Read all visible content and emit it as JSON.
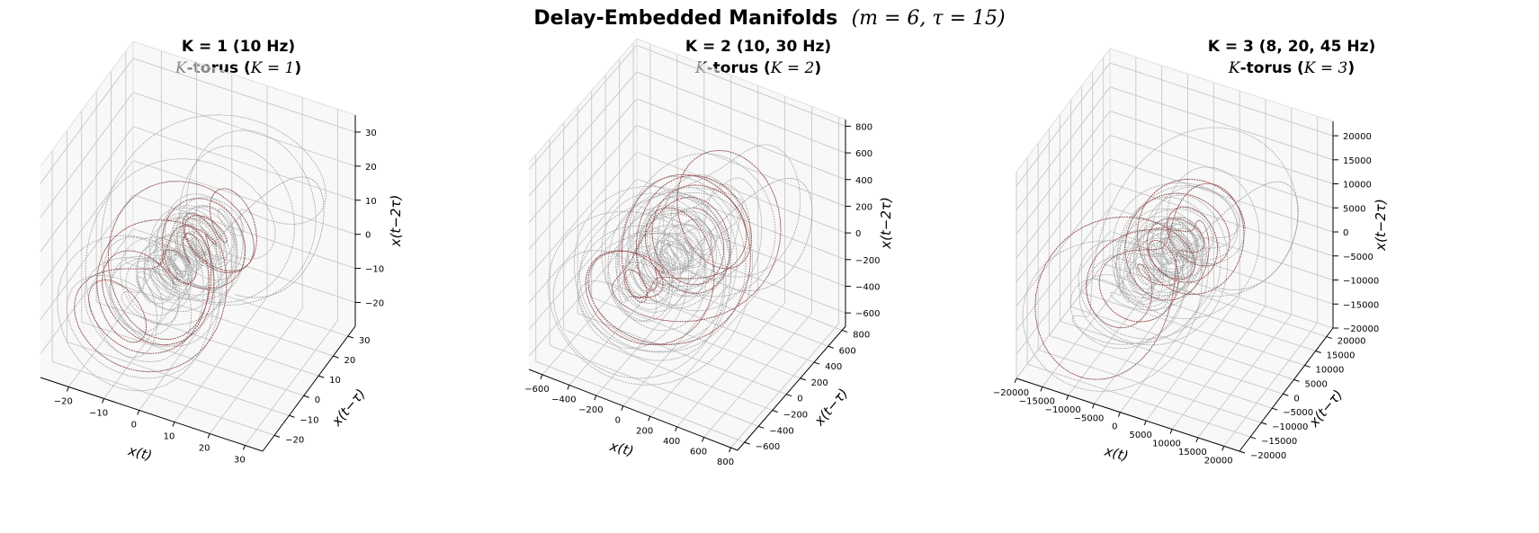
{
  "title": {
    "text": "Delay-Embedded Manifolds",
    "params": "(m = 6,  τ = 15)"
  },
  "chart_data": [
    {
      "type": "scatter",
      "projection": "3d",
      "title": "K = 1  (10 Hz)",
      "subtitle_prefix": "K",
      "subtitle_mid": "-torus (",
      "subtitle_math": "K = 1",
      "subtitle_suffix": ")",
      "xlabel": "x(t)",
      "ylabel": "x(t−τ)",
      "zlabel": "x(t−2τ)",
      "xticks": [
        -20,
        -10,
        0,
        10,
        20,
        30
      ],
      "yticks": [
        -20,
        -10,
        0,
        10,
        20,
        30
      ],
      "zticks": [
        -20,
        -10,
        0,
        10,
        20,
        30
      ],
      "xlim": [
        -28,
        35
      ],
      "ylim": [
        -28,
        35
      ],
      "zlim": [
        -27,
        35
      ],
      "grid": true,
      "trajectory": {
        "amplitude": 15,
        "extent": 33,
        "seed": 11,
        "color": "#a0a0a0",
        "highlight_color": "#8b1a1a"
      }
    },
    {
      "type": "scatter",
      "projection": "3d",
      "title": "K = 2  (10, 30 Hz)",
      "subtitle_prefix": "K",
      "subtitle_mid": "-torus (",
      "subtitle_math": "K = 2",
      "subtitle_suffix": ")",
      "xlabel": "x(t)",
      "ylabel": "x(t−τ)",
      "zlabel": "x(t−2τ)",
      "xticks": [
        -600,
        -400,
        -200,
        0,
        200,
        400,
        600,
        800
      ],
      "yticks": [
        -600,
        -400,
        -200,
        0,
        200,
        400,
        600,
        800
      ],
      "zticks": [
        -600,
        -400,
        -200,
        0,
        200,
        400,
        600,
        800
      ],
      "xlim": [
        -700,
        850
      ],
      "ylim": [
        -700,
        850
      ],
      "zlim": [
        -700,
        850
      ],
      "grid": true,
      "trajectory": {
        "amplitude": 400,
        "extent": 800,
        "seed": 23,
        "color": "#a0a0a0",
        "highlight_color": "#8b1a1a"
      }
    },
    {
      "type": "scatter",
      "projection": "3d",
      "title": "K = 3  (8, 20, 45 Hz)",
      "subtitle_prefix": "K",
      "subtitle_mid": "-torus (",
      "subtitle_math": "K = 3",
      "subtitle_suffix": ")",
      "xlabel": "x(t)",
      "ylabel": "x(t−τ)",
      "zlabel": "x(t−2τ)",
      "xticks": [
        -20000,
        -15000,
        -10000,
        -5000,
        0,
        5000,
        10000,
        15000,
        20000
      ],
      "yticks": [
        -20000,
        -15000,
        -10000,
        -5000,
        0,
        5000,
        10000,
        15000,
        20000
      ],
      "zticks": [
        -20000,
        -15000,
        -10000,
        -5000,
        0,
        5000,
        10000,
        15000,
        20000
      ],
      "xlim": [
        -20000,
        23000
      ],
      "ylim": [
        -20000,
        23000
      ],
      "zlim": [
        -20000,
        23000
      ],
      "grid": true,
      "trajectory": {
        "amplitude": 10000,
        "extent": 21000,
        "seed": 37,
        "color": "#a0a0a0",
        "highlight_color": "#8b1a1a"
      }
    }
  ]
}
